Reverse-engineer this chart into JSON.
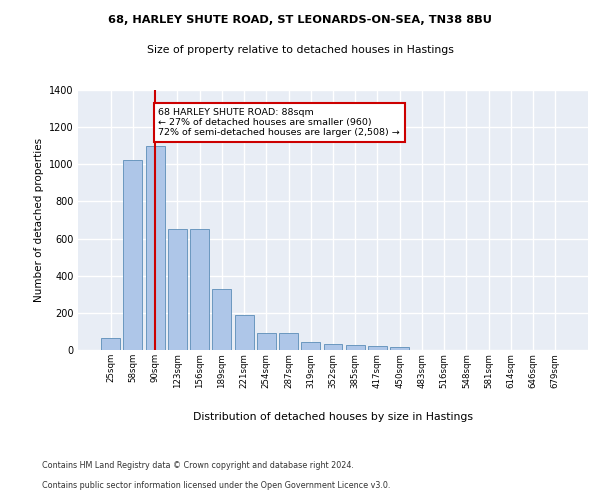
{
  "title1": "68, HARLEY SHUTE ROAD, ST LEONARDS-ON-SEA, TN38 8BU",
  "title2": "Size of property relative to detached houses in Hastings",
  "xlabel": "Distribution of detached houses by size in Hastings",
  "ylabel": "Number of detached properties",
  "categories": [
    "25sqm",
    "58sqm",
    "90sqm",
    "123sqm",
    "156sqm",
    "189sqm",
    "221sqm",
    "254sqm",
    "287sqm",
    "319sqm",
    "352sqm",
    "385sqm",
    "417sqm",
    "450sqm",
    "483sqm",
    "516sqm",
    "548sqm",
    "581sqm",
    "614sqm",
    "646sqm",
    "679sqm"
  ],
  "values": [
    62,
    1022,
    1100,
    652,
    652,
    330,
    190,
    90,
    90,
    45,
    30,
    25,
    20,
    15,
    0,
    0,
    0,
    0,
    0,
    0,
    0
  ],
  "bar_color": "#aec6e8",
  "bar_edgecolor": "#5b8db8",
  "highlight_index": 2,
  "highlight_color": "#cc0000",
  "annotation_text": "68 HARLEY SHUTE ROAD: 88sqm\n← 27% of detached houses are smaller (960)\n72% of semi-detached houses are larger (2,508) →",
  "annotation_box_color": "#ffffff",
  "annotation_box_edgecolor": "#cc0000",
  "ylim": [
    0,
    1400
  ],
  "yticks": [
    0,
    200,
    400,
    600,
    800,
    1000,
    1200,
    1400
  ],
  "background_color": "#e8edf5",
  "grid_color": "#ffffff",
  "footer1": "Contains HM Land Registry data © Crown copyright and database right 2024.",
  "footer2": "Contains public sector information licensed under the Open Government Licence v3.0."
}
